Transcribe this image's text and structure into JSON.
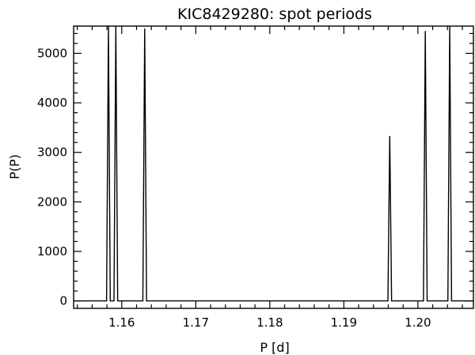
{
  "chart_data": {
    "type": "line",
    "title": "KIC8429280: spot periods",
    "xlabel": "P [d]",
    "ylabel": "P(P)",
    "xlim": [
      1.1535,
      1.2075
    ],
    "ylim": [
      -150,
      5550
    ],
    "xticks": [
      {
        "value": 1.16,
        "label": "1.16"
      },
      {
        "value": 1.17,
        "label": "1.17"
      },
      {
        "value": 1.18,
        "label": "1.18"
      },
      {
        "value": 1.19,
        "label": "1.19"
      },
      {
        "value": 1.2,
        "label": "1.20"
      }
    ],
    "yticks": [
      {
        "value": 0,
        "label": "0"
      },
      {
        "value": 1000,
        "label": "1000"
      },
      {
        "value": 2000,
        "label": "2000"
      },
      {
        "value": 3000,
        "label": "3000"
      },
      {
        "value": 4000,
        "label": "4000"
      },
      {
        "value": 5000,
        "label": "5000"
      }
    ],
    "grid": false,
    "color": "#000000",
    "peaks": [
      {
        "x": 1.1582,
        "y": 5550
      },
      {
        "x": 1.1592,
        "y": 5550
      },
      {
        "x": 1.1631,
        "y": 5500
      },
      {
        "x": 1.1962,
        "y": 3330
      },
      {
        "x": 1.201,
        "y": 5450
      },
      {
        "x": 1.2043,
        "y": 5550
      }
    ],
    "peak_half_width": 0.00025
  }
}
